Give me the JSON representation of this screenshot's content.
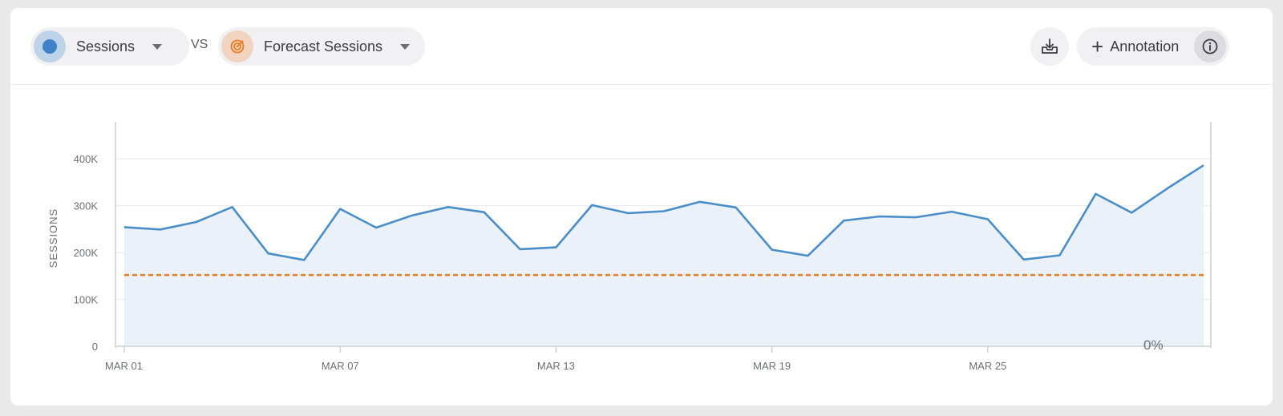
{
  "toolbar": {
    "metric": {
      "label": "Sessions",
      "color": "#3e82c7"
    },
    "vs_label": "VS",
    "comparison": {
      "label": "Forecast Sessions",
      "color": "#e67e22",
      "icon": "target-icon"
    },
    "download_icon": "download-tray-icon",
    "annotation_label": "Annotation",
    "info_icon": "info-icon"
  },
  "chart_data": {
    "type": "area",
    "ylabel": "SESSIONS",
    "ylim": [
      0,
      400000
    ],
    "yticks": [
      "0",
      "100K",
      "200K",
      "300K",
      "400K"
    ],
    "xticks": [
      "MAR 01",
      "MAR 07",
      "MAR 13",
      "MAR 19",
      "MAR 25"
    ],
    "x": [
      "Mar 01",
      "Mar 02",
      "Mar 03",
      "Mar 04",
      "Mar 05",
      "Mar 06",
      "Mar 07",
      "Mar 08",
      "Mar 09",
      "Mar 10",
      "Mar 11",
      "Mar 12",
      "Mar 13",
      "Mar 14",
      "Mar 15",
      "Mar 16",
      "Mar 17",
      "Mar 18",
      "Mar 19",
      "Mar 20",
      "Mar 21",
      "Mar 22",
      "Mar 23",
      "Mar 24",
      "Mar 25",
      "Mar 26",
      "Mar 27",
      "Mar 28",
      "Mar 29",
      "Mar 30",
      "Mar 31"
    ],
    "series": [
      {
        "name": "Sessions",
        "color": "#3e82c7",
        "values": [
          254000,
          249000,
          265000,
          297000,
          198000,
          184000,
          293000,
          253000,
          279000,
          297000,
          286000,
          207000,
          211000,
          301000,
          284000,
          288000,
          308000,
          296000,
          206000,
          193000,
          268000,
          277000,
          275000,
          287000,
          271000,
          185000,
          194000,
          325000,
          285000,
          337000,
          386000
        ]
      },
      {
        "name": "Forecast Sessions",
        "color": "#e67e22",
        "style": "dashed",
        "values": [
          152000,
          152000,
          152000,
          152000,
          152000,
          152000,
          152000,
          152000,
          152000,
          152000,
          152000,
          152000,
          152000,
          152000,
          152000,
          152000,
          152000,
          152000,
          152000,
          152000,
          152000,
          152000,
          152000,
          152000,
          152000,
          152000,
          152000,
          152000,
          152000,
          152000,
          152000
        ]
      }
    ],
    "annotation_value": "0%",
    "grid": true
  }
}
